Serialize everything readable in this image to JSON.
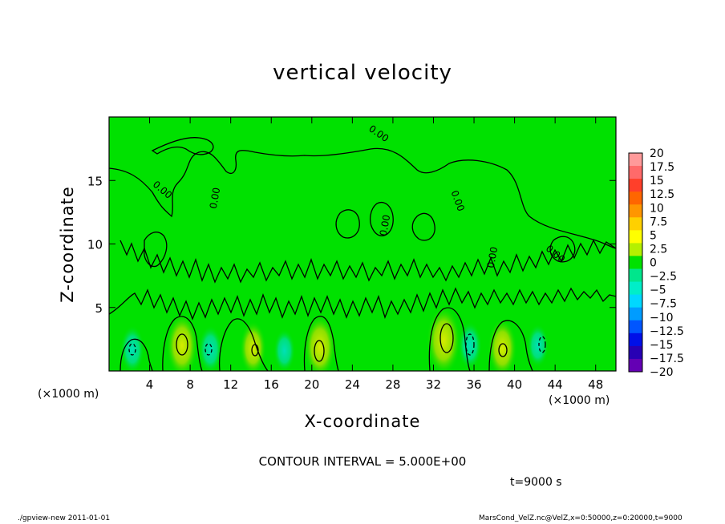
{
  "chart_data": {
    "type": "heatmap",
    "title": "vertical velocity",
    "xlabel": "X-coordinate",
    "ylabel": "Z-coordinate",
    "x_unit_label": "(×1000 m)",
    "x_ticks": [
      4,
      8,
      12,
      16,
      20,
      24,
      28,
      32,
      36,
      40,
      44,
      48
    ],
    "y_ticks": [
      5,
      10,
      15
    ],
    "xlim": [
      0,
      50
    ],
    "ylim": [
      0,
      20
    ],
    "colorbar_levels": [
      "20",
      "17.5",
      "15",
      "12.5",
      "10",
      "7.5",
      "5",
      "2.5",
      "0",
      "−2.5",
      "−5",
      "−7.5",
      "−10",
      "−12.5",
      "−15",
      "−17.5",
      "−20"
    ],
    "colorbar_colors": [
      "#ff9a9a",
      "#ff6a6a",
      "#ff3f2a",
      "#ff6600",
      "#ff9600",
      "#ffd000",
      "#ffff00",
      "#b4f000",
      "#00e100",
      "#00e68c",
      "#00eec8",
      "#00d8ff",
      "#009cff",
      "#0056ff",
      "#0010e8",
      "#2800b4",
      "#6400b4"
    ],
    "contour_labels": [
      "0.00",
      "0.00",
      "0.00",
      "0.00",
      "0.00",
      "0.00",
      "0.00"
    ],
    "contour_interval_text": "CONTOUR INTERVAL = 5.000E+00",
    "time_text": "t=9000 s",
    "updraft_cores": [
      {
        "x": 7.2,
        "z": 2.0,
        "w": 6
      },
      {
        "x": 14.2,
        "z": 1.8,
        "w": 4
      },
      {
        "x": 20.8,
        "z": 1.9,
        "w": 6
      },
      {
        "x": 33.0,
        "z": 2.4,
        "w": 7
      },
      {
        "x": 38.8,
        "z": 1.8,
        "w": 5
      }
    ],
    "downdraft_cores": [
      {
        "x": 2.3,
        "z": 1.7,
        "w": -4
      },
      {
        "x": 10.0,
        "z": 1.7,
        "w": -4
      },
      {
        "x": 17.3,
        "z": 1.6,
        "w": -3
      },
      {
        "x": 35.6,
        "z": 2.0,
        "w": -4
      },
      {
        "x": 42.3,
        "z": 2.0,
        "w": -3
      }
    ]
  },
  "footer": {
    "left": "./gpview-new   2011-01-01",
    "right": "MarsCond_VelZ.nc@VelZ,x=0:50000,z=0:20000,t=9000"
  }
}
